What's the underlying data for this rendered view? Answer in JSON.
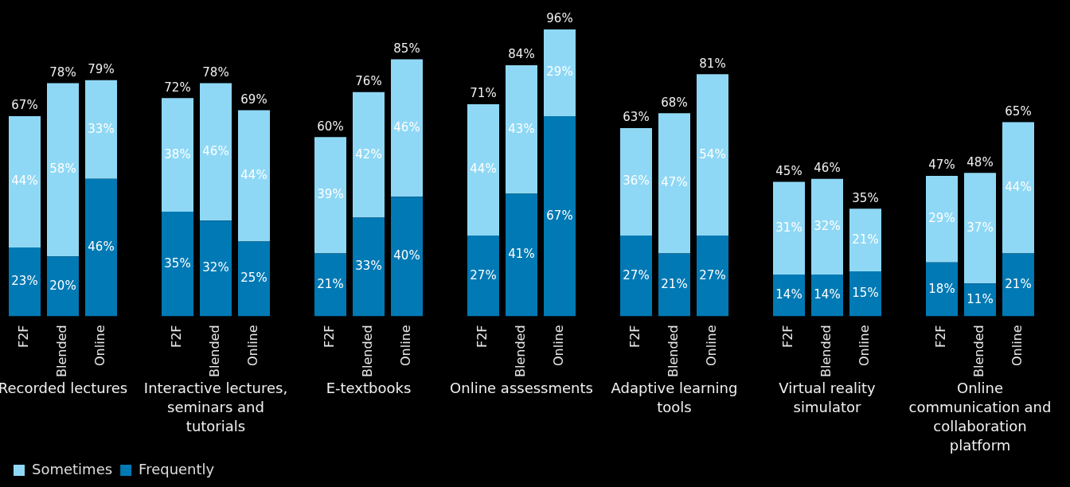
{
  "chart_data": {
    "type": "bar",
    "stacked": true,
    "legend": "bottom left",
    "categories": [
      "F2F",
      "Blended",
      "Online",
      "F2F",
      "Blended",
      "Online",
      "F2F",
      "Blended",
      "Online",
      "F2F",
      "Blended",
      "Online",
      "F2F",
      "Blended",
      "Online",
      "F2F",
      "Blended",
      "Online",
      "F2F",
      "Blended",
      "Online"
    ],
    "series": [
      {
        "name": "Frequently",
        "color": "#0079b4",
        "values": [
          23,
          20,
          46,
          35,
          32,
          25,
          21,
          33,
          40,
          27,
          41,
          67,
          27,
          21,
          27,
          14,
          14,
          15,
          18,
          11,
          21
        ],
        "value_labels": [
          "23%",
          "20%",
          "46%",
          "35%",
          "32%",
          "25%",
          "21%",
          "33%",
          "40%",
          "27%",
          "41%",
          "67%",
          "27%",
          "21%",
          "27%",
          "14%",
          "14%",
          "15%",
          "18%",
          "11%",
          "21%"
        ]
      },
      {
        "name": "Sometimes",
        "color": "#8fd8f5",
        "values": [
          44,
          58,
          33,
          38,
          46,
          44,
          39,
          42,
          46,
          44,
          43,
          29,
          36,
          47,
          54,
          31,
          32,
          21,
          29,
          37,
          44
        ],
        "value_labels": [
          "44%",
          "58%",
          "33%",
          "38%",
          "46%",
          "44%",
          "39%",
          "42%",
          "46%",
          "44%",
          "43%",
          "29%",
          "36%",
          "47%",
          "54%",
          "31%",
          "32%",
          "21%",
          "29%",
          "37%",
          "44%"
        ]
      }
    ],
    "totals": [
      "67%",
      "78%",
      "79%",
      "72%",
      "78%",
      "69%",
      "60%",
      "76%",
      "85%",
      "71%",
      "84%",
      "96%",
      "63%",
      "68%",
      "81%",
      "45%",
      "46%",
      "35%",
      "47%",
      "48%",
      "65%"
    ],
    "annotations": [
      "Recorded lectures",
      "Interactive lectures, seminars and tutorials",
      "E-textbooks",
      "Online assessments",
      "Adaptive learning tools",
      "Virtual reality simulator",
      "Online communication and collaboration platform"
    ]
  }
}
